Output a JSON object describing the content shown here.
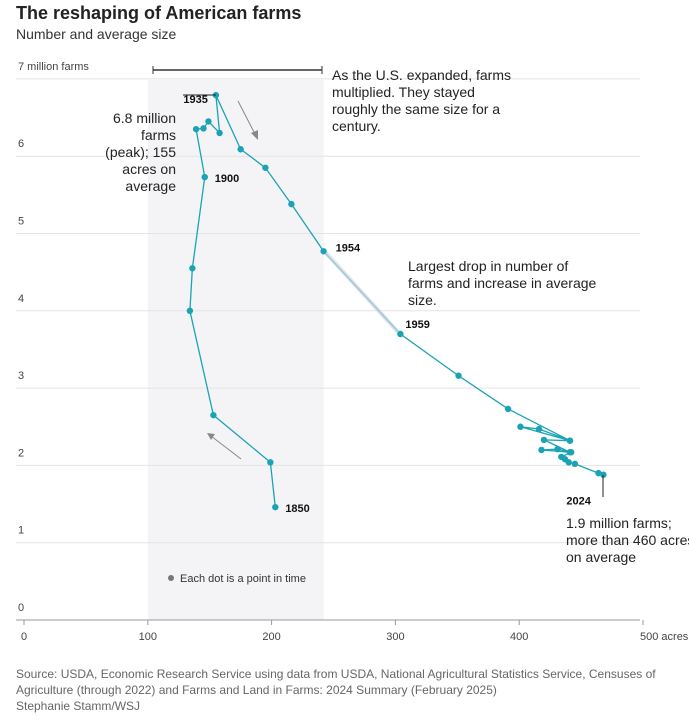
{
  "chart_data": {
    "type": "line",
    "title": "The reshaping of American farms",
    "subtitle": "Number and average size",
    "x_unit": "acres",
    "y_unit": "million farms",
    "xlim": [
      0,
      500
    ],
    "ylim": [
      0,
      7
    ],
    "x_ticks": [
      "0",
      "100",
      "200",
      "300",
      "400",
      "500 acres"
    ],
    "y_ticks": [
      "0",
      "1",
      "2",
      "3",
      "4",
      "5",
      "6",
      "7 million farms"
    ],
    "grid": true,
    "series": [
      {
        "points": [
          [
            203,
            1.46
          ],
          [
            199,
            2.04
          ],
          [
            153,
            2.65
          ],
          [
            134,
            4.0
          ],
          [
            136,
            4.55
          ],
          [
            146,
            5.73
          ],
          [
            139,
            6.35
          ],
          [
            145,
            6.36
          ],
          [
            149,
            6.45
          ],
          [
            158,
            6.3
          ],
          [
            155,
            6.79
          ],
          [
            175,
            6.09
          ],
          [
            195,
            5.85
          ],
          [
            216,
            5.38
          ],
          [
            242,
            4.77
          ],
          [
            304,
            3.7
          ],
          [
            351,
            3.16
          ],
          [
            391,
            2.73
          ],
          [
            441,
            2.32
          ],
          [
            401,
            2.5
          ],
          [
            416,
            2.47
          ],
          [
            441,
            2.32
          ],
          [
            420,
            2.33
          ],
          [
            441,
            2.17
          ],
          [
            418,
            2.2
          ],
          [
            431,
            2.21
          ],
          [
            442,
            2.17
          ],
          [
            434,
            2.11
          ],
          [
            437,
            2.08
          ],
          [
            440,
            2.04
          ],
          [
            445,
            2.02
          ],
          [
            464,
            1.9
          ],
          [
            468,
            1.88
          ]
        ]
      }
    ],
    "point_labels": [
      {
        "label": "1850",
        "x": 203,
        "y": 1.46
      },
      {
        "label": "1900",
        "x": 146,
        "y": 5.73
      },
      {
        "label": "1935",
        "x": 155,
        "y": 6.79
      },
      {
        "label": "1954",
        "x": 242,
        "y": 4.77
      },
      {
        "label": "1959",
        "x": 304,
        "y": 3.7
      },
      {
        "label": "2024",
        "x": 468,
        "y": 1.88
      }
    ],
    "shaded_range": [
      100,
      242
    ],
    "annotations": {
      "peak": "6.8 million farms (peak); 155 acres on average",
      "expanded": "As the U.S. expanded, farms multiplied. They stayed roughly the same size for a century.",
      "drop": "Largest drop in number of farms and increase in average size.",
      "end": "1.9 million farms; more than 460 acres on average",
      "legend": "Each dot is a point in time"
    },
    "colors": {
      "line": "#1aa3b5",
      "shade": "#f4f4f6"
    }
  },
  "source": "Source: USDA, Economic Research Service using data from USDA, National Agricultural Statistics Service, Censuses of Agriculture (through 2022) and Farms and Land in Farms: 2024 Summary (February 2025)",
  "credit": "Stephanie Stamm/WSJ"
}
